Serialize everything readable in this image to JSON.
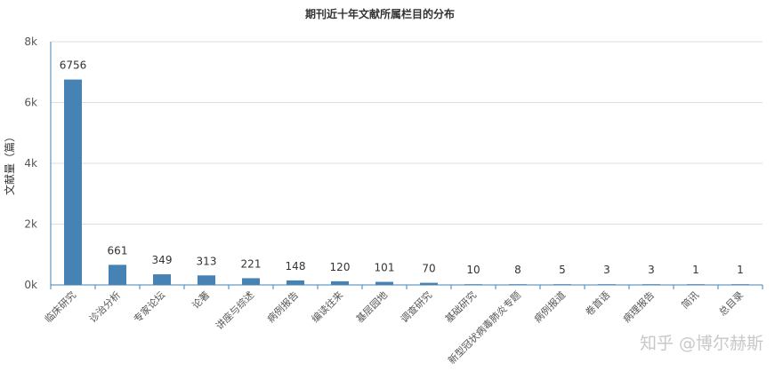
{
  "chart_data": {
    "type": "bar",
    "title": "期刊近十年文献所属栏目的分布",
    "ylabel": "文献量（篇）",
    "xlabel": "",
    "ylim": [
      0,
      8000
    ],
    "yticks": [
      0,
      2000,
      4000,
      6000,
      8000
    ],
    "ytick_labels": [
      "0k",
      "2k",
      "4k",
      "6k",
      "8k"
    ],
    "grid": true,
    "bar_color": "#4682b4",
    "categories": [
      "临床研究",
      "诊治分析",
      "专家论坛",
      "论著",
      "讲座与综述",
      "病例报告",
      "编读往来",
      "基层园地",
      "调查研究",
      "基础研究",
      "新型冠状病毒肺炎专题",
      "病例报道",
      "卷首语",
      "病理报告",
      "简讯",
      "总目录"
    ],
    "values": [
      6756,
      661,
      349,
      313,
      221,
      148,
      120,
      101,
      70,
      10,
      8,
      5,
      3,
      3,
      1,
      1
    ]
  },
  "watermark": "知乎 @博尔赫斯"
}
